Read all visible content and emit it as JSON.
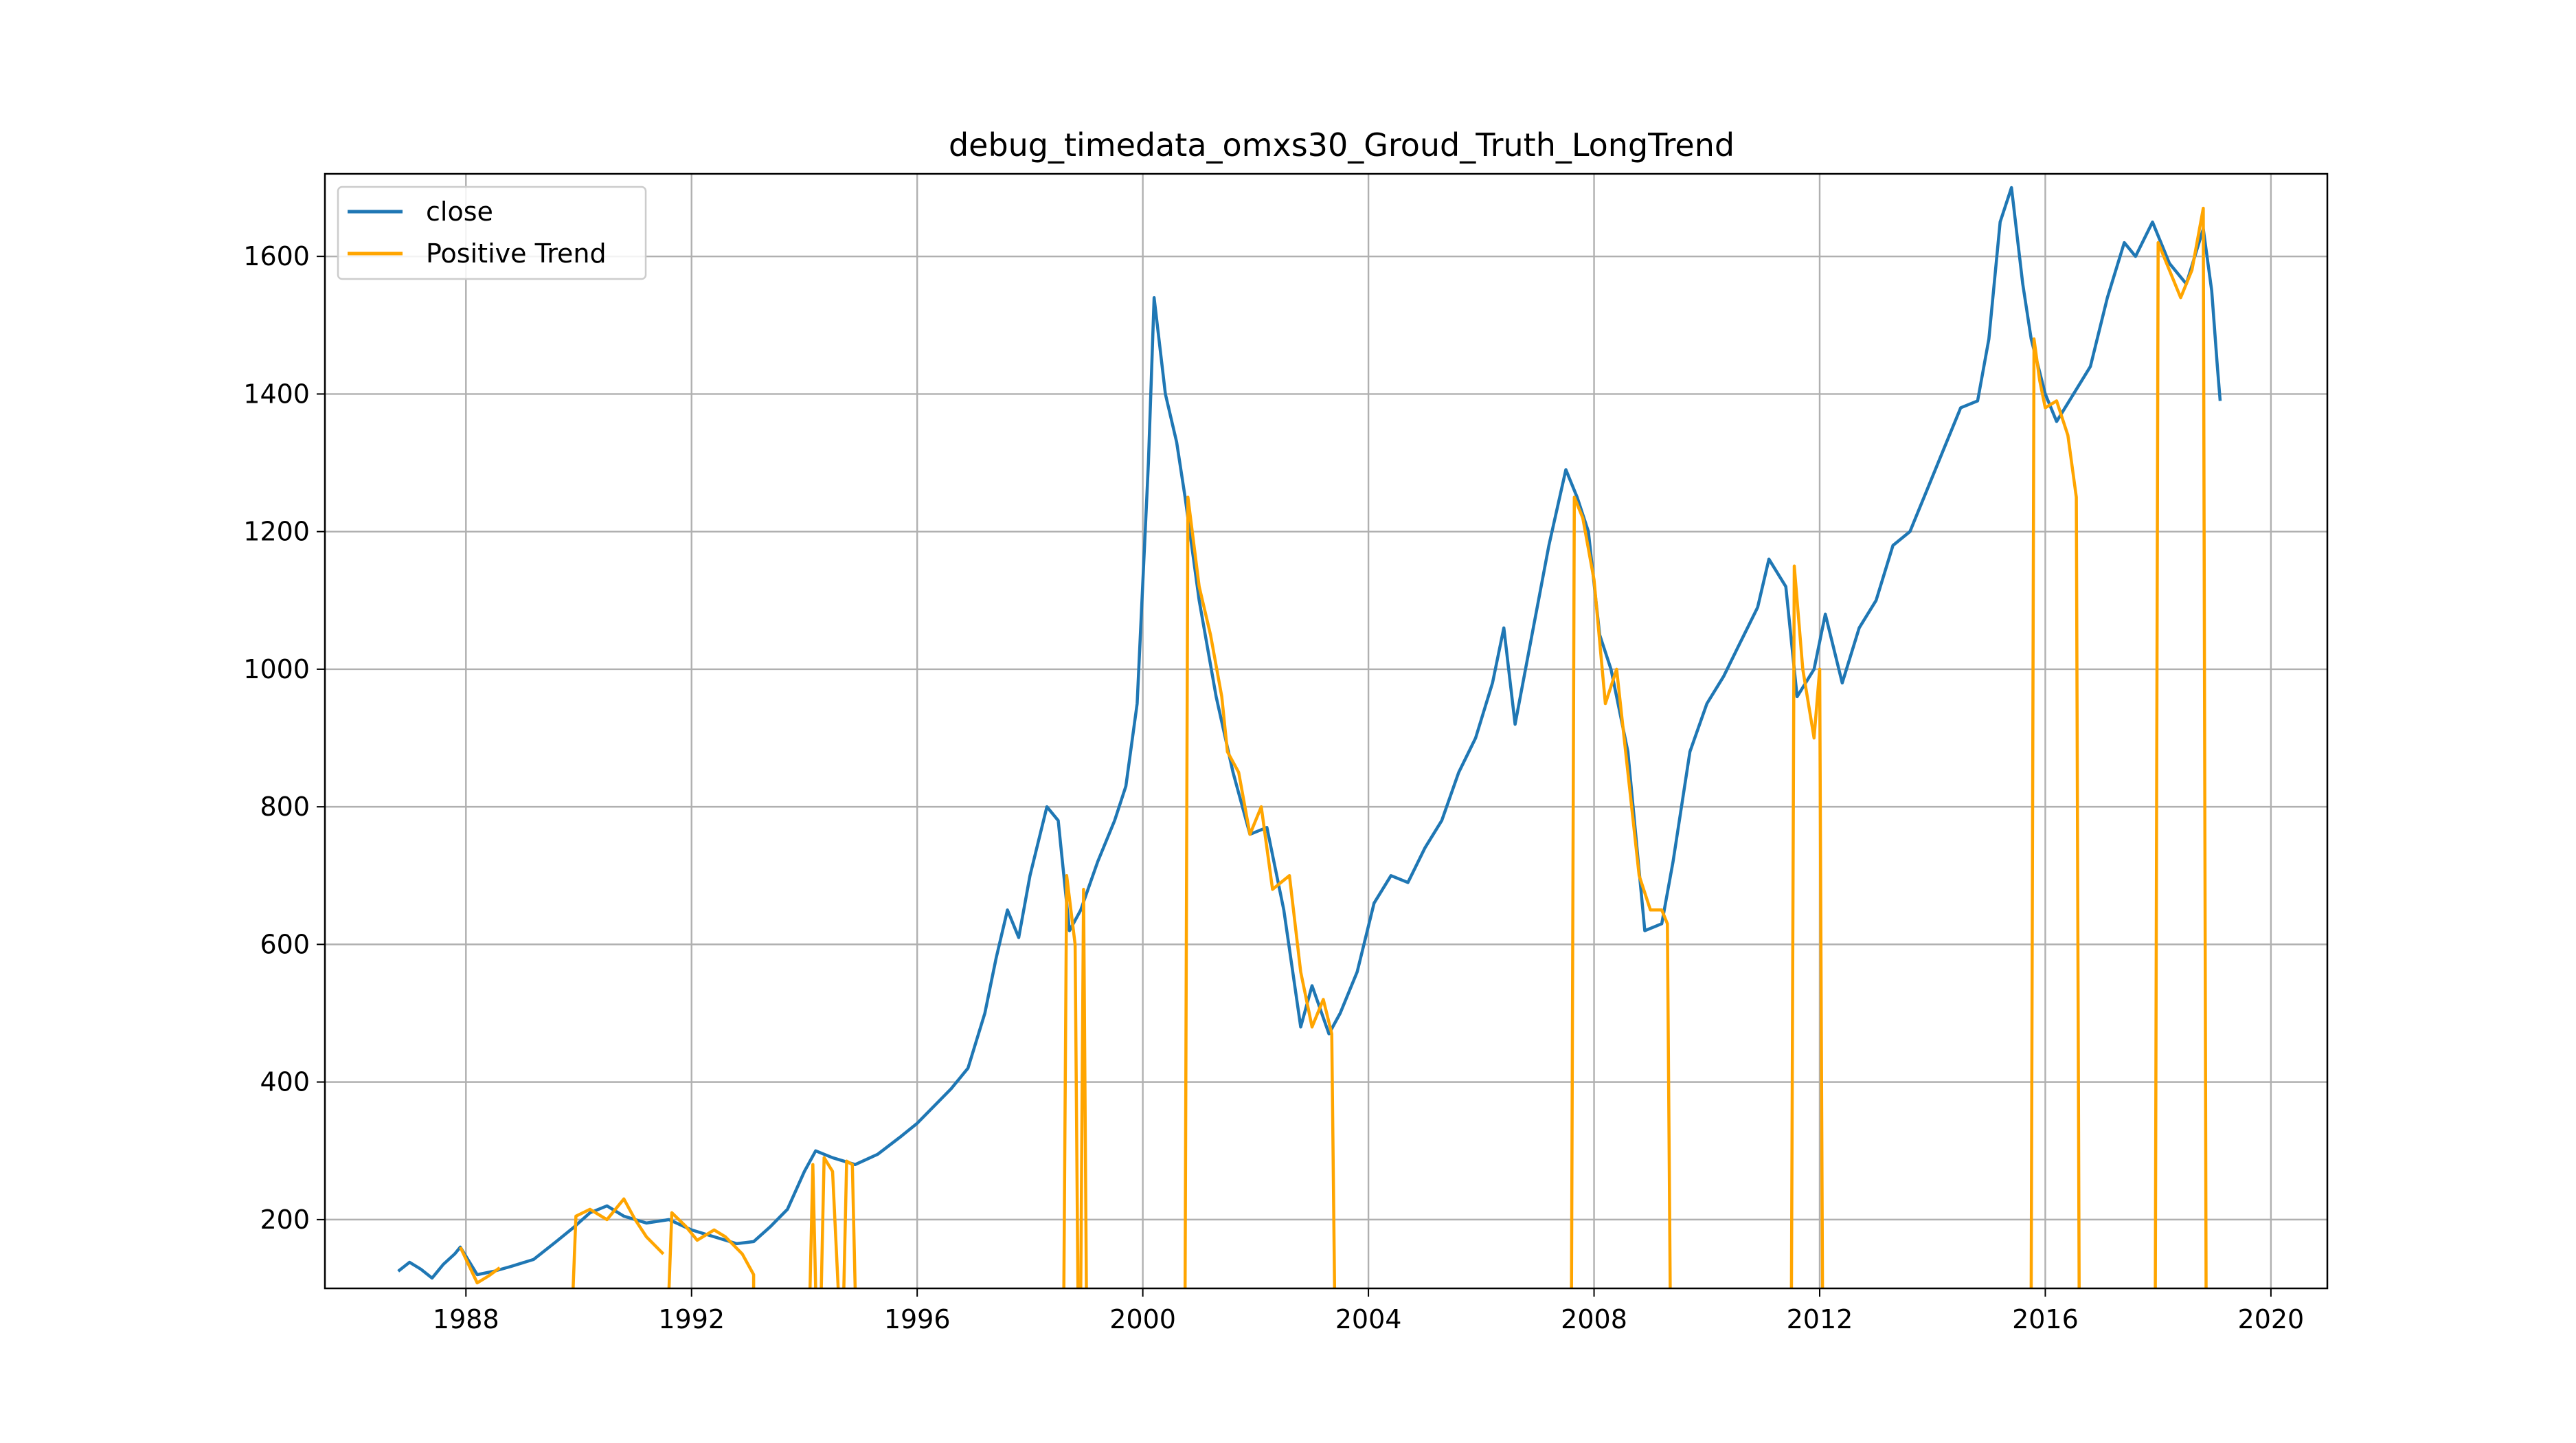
{
  "chart_data": {
    "type": "line",
    "title": "debug_timedata_omxs30_Groud_Truth_LongTrend",
    "xlabel": "",
    "ylabel": "",
    "xlim": [
      1985.5,
      2021.0
    ],
    "ylim": [
      100,
      1720
    ],
    "x_ticks": [
      1988,
      1992,
      1996,
      2000,
      2004,
      2008,
      2012,
      2016,
      2020
    ],
    "y_ticks": [
      200,
      400,
      600,
      800,
      1000,
      1200,
      1400,
      1600
    ],
    "grid": true,
    "legend_position": "top-left",
    "series": [
      {
        "name": "close",
        "color": "#1f77b4",
        "points": [
          [
            1986.8,
            125
          ],
          [
            1987.0,
            138
          ],
          [
            1987.2,
            128
          ],
          [
            1987.4,
            115
          ],
          [
            1987.6,
            135
          ],
          [
            1987.8,
            150
          ],
          [
            1987.9,
            160
          ],
          [
            1988.2,
            120
          ],
          [
            1988.5,
            125
          ],
          [
            1988.8,
            132
          ],
          [
            1989.2,
            142
          ],
          [
            1989.6,
            168
          ],
          [
            1989.9,
            188
          ],
          [
            1990.2,
            210
          ],
          [
            1990.5,
            220
          ],
          [
            1990.8,
            205
          ],
          [
            1991.2,
            195
          ],
          [
            1991.6,
            200
          ],
          [
            1992.0,
            185
          ],
          [
            1992.4,
            175
          ],
          [
            1992.8,
            165
          ],
          [
            1993.1,
            168
          ],
          [
            1993.4,
            190
          ],
          [
            1993.7,
            215
          ],
          [
            1994.0,
            270
          ],
          [
            1994.2,
            300
          ],
          [
            1994.5,
            290
          ],
          [
            1994.9,
            280
          ],
          [
            1995.3,
            295
          ],
          [
            1995.7,
            320
          ],
          [
            1996.0,
            340
          ],
          [
            1996.3,
            365
          ],
          [
            1996.6,
            390
          ],
          [
            1996.9,
            420
          ],
          [
            1997.2,
            500
          ],
          [
            1997.4,
            580
          ],
          [
            1997.6,
            650
          ],
          [
            1997.8,
            610
          ],
          [
            1998.0,
            700
          ],
          [
            1998.3,
            800
          ],
          [
            1998.5,
            780
          ],
          [
            1998.7,
            620
          ],
          [
            1998.9,
            650
          ],
          [
            1999.2,
            720
          ],
          [
            1999.5,
            780
          ],
          [
            1999.7,
            830
          ],
          [
            1999.9,
            950
          ],
          [
            2000.1,
            1300
          ],
          [
            2000.2,
            1540
          ],
          [
            2000.4,
            1400
          ],
          [
            2000.6,
            1330
          ],
          [
            2000.75,
            1250
          ],
          [
            2001.0,
            1100
          ],
          [
            2001.3,
            960
          ],
          [
            2001.6,
            850
          ],
          [
            2001.9,
            760
          ],
          [
            2002.2,
            770
          ],
          [
            2002.5,
            650
          ],
          [
            2002.8,
            480
          ],
          [
            2003.0,
            540
          ],
          [
            2003.3,
            470
          ],
          [
            2003.5,
            500
          ],
          [
            2003.8,
            560
          ],
          [
            2004.1,
            660
          ],
          [
            2004.4,
            700
          ],
          [
            2004.7,
            690
          ],
          [
            2005.0,
            740
          ],
          [
            2005.3,
            780
          ],
          [
            2005.6,
            850
          ],
          [
            2005.9,
            900
          ],
          [
            2006.2,
            980
          ],
          [
            2006.4,
            1060
          ],
          [
            2006.6,
            920
          ],
          [
            2006.9,
            1050
          ],
          [
            2007.2,
            1180
          ],
          [
            2007.5,
            1290
          ],
          [
            2007.7,
            1250
          ],
          [
            2007.9,
            1200
          ],
          [
            2008.1,
            1050
          ],
          [
            2008.3,
            1000
          ],
          [
            2008.6,
            880
          ],
          [
            2008.9,
            620
          ],
          [
            2009.2,
            630
          ],
          [
            2009.4,
            720
          ],
          [
            2009.7,
            880
          ],
          [
            2010.0,
            950
          ],
          [
            2010.3,
            990
          ],
          [
            2010.6,
            1040
          ],
          [
            2010.9,
            1090
          ],
          [
            2011.1,
            1160
          ],
          [
            2011.4,
            1120
          ],
          [
            2011.6,
            960
          ],
          [
            2011.9,
            1000
          ],
          [
            2012.1,
            1080
          ],
          [
            2012.4,
            980
          ],
          [
            2012.7,
            1060
          ],
          [
            2013.0,
            1100
          ],
          [
            2013.3,
            1180
          ],
          [
            2013.6,
            1200
          ],
          [
            2013.9,
            1260
          ],
          [
            2014.2,
            1320
          ],
          [
            2014.5,
            1380
          ],
          [
            2014.8,
            1390
          ],
          [
            2015.0,
            1480
          ],
          [
            2015.2,
            1650
          ],
          [
            2015.4,
            1700
          ],
          [
            2015.6,
            1560
          ],
          [
            2015.75,
            1480
          ],
          [
            2016.0,
            1400
          ],
          [
            2016.2,
            1360
          ],
          [
            2016.5,
            1400
          ],
          [
            2016.8,
            1440
          ],
          [
            2017.1,
            1540
          ],
          [
            2017.4,
            1620
          ],
          [
            2017.6,
            1600
          ],
          [
            2017.9,
            1650
          ],
          [
            2018.2,
            1590
          ],
          [
            2018.5,
            1560
          ],
          [
            2018.8,
            1640
          ],
          [
            2018.95,
            1550
          ],
          [
            2019.05,
            1440
          ],
          [
            2019.1,
            1390
          ]
        ]
      },
      {
        "name": "Positive Trend",
        "color": "#ffa500",
        "segments": [
          [
            [
              1987.9,
              160
            ],
            [
              1988.2,
              108
            ],
            [
              1988.4,
              118
            ],
            [
              1988.6,
              130
            ]
          ],
          [
            [
              1989.9,
              100
            ],
            [
              1989.95,
              205
            ],
            [
              1990.2,
              215
            ],
            [
              1990.5,
              200
            ],
            [
              1990.8,
              230
            ],
            [
              1991.0,
              200
            ],
            [
              1991.2,
              175
            ],
            [
              1991.5,
              150
            ]
          ],
          [
            [
              1991.6,
              100
            ],
            [
              1991.65,
              210
            ],
            [
              1991.9,
              190
            ],
            [
              1992.1,
              170
            ],
            [
              1992.4,
              185
            ],
            [
              1992.6,
              175
            ],
            [
              1992.9,
              150
            ],
            [
              1993.1,
              120
            ],
            [
              1993.1,
              100
            ]
          ],
          [
            [
              1994.1,
              100
            ],
            [
              1994.15,
              280
            ],
            [
              1994.2,
              100
            ]
          ],
          [
            [
              1994.3,
              100
            ],
            [
              1994.35,
              290
            ],
            [
              1994.5,
              270
            ],
            [
              1994.6,
              100
            ]
          ],
          [
            [
              1994.7,
              100
            ],
            [
              1994.75,
              285
            ],
            [
              1994.85,
              280
            ],
            [
              1994.9,
              100
            ]
          ],
          [
            [
              1998.6,
              100
            ],
            [
              1998.65,
              700
            ],
            [
              1998.8,
              600
            ],
            [
              1998.85,
              100
            ]
          ],
          [
            [
              1998.9,
              100
            ],
            [
              1998.95,
              680
            ],
            [
              1999.0,
              100
            ]
          ],
          [
            [
              2000.75,
              100
            ],
            [
              2000.8,
              1250
            ],
            [
              2001.0,
              1120
            ],
            [
              2001.2,
              1050
            ],
            [
              2001.4,
              960
            ],
            [
              2001.5,
              880
            ],
            [
              2001.7,
              850
            ],
            [
              2001.9,
              760
            ],
            [
              2002.1,
              800
            ],
            [
              2002.3,
              680
            ],
            [
              2002.6,
              700
            ],
            [
              2002.8,
              560
            ],
            [
              2003.0,
              480
            ],
            [
              2003.2,
              520
            ],
            [
              2003.35,
              470
            ],
            [
              2003.4,
              100
            ]
          ],
          [
            [
              2007.6,
              100
            ],
            [
              2007.65,
              1250
            ],
            [
              2007.8,
              1220
            ],
            [
              2008.0,
              1130
            ],
            [
              2008.2,
              950
            ],
            [
              2008.4,
              1000
            ],
            [
              2008.6,
              850
            ],
            [
              2008.8,
              700
            ],
            [
              2009.0,
              650
            ],
            [
              2009.2,
              650
            ],
            [
              2009.3,
              630
            ],
            [
              2009.35,
              100
            ]
          ],
          [
            [
              2011.5,
              100
            ],
            [
              2011.55,
              1150
            ],
            [
              2011.7,
              1000
            ],
            [
              2011.9,
              900
            ],
            [
              2012.0,
              1000
            ],
            [
              2012.05,
              100
            ]
          ],
          [
            [
              2015.75,
              100
            ],
            [
              2015.8,
              1480
            ],
            [
              2015.9,
              1420
            ],
            [
              2016.0,
              1380
            ],
            [
              2016.2,
              1390
            ],
            [
              2016.4,
              1340
            ],
            [
              2016.55,
              1250
            ],
            [
              2016.6,
              100
            ]
          ],
          [
            [
              2017.95,
              100
            ],
            [
              2018.0,
              1620
            ],
            [
              2018.2,
              1580
            ],
            [
              2018.4,
              1540
            ],
            [
              2018.6,
              1580
            ],
            [
              2018.8,
              1670
            ],
            [
              2018.85,
              100
            ]
          ]
        ]
      }
    ]
  }
}
